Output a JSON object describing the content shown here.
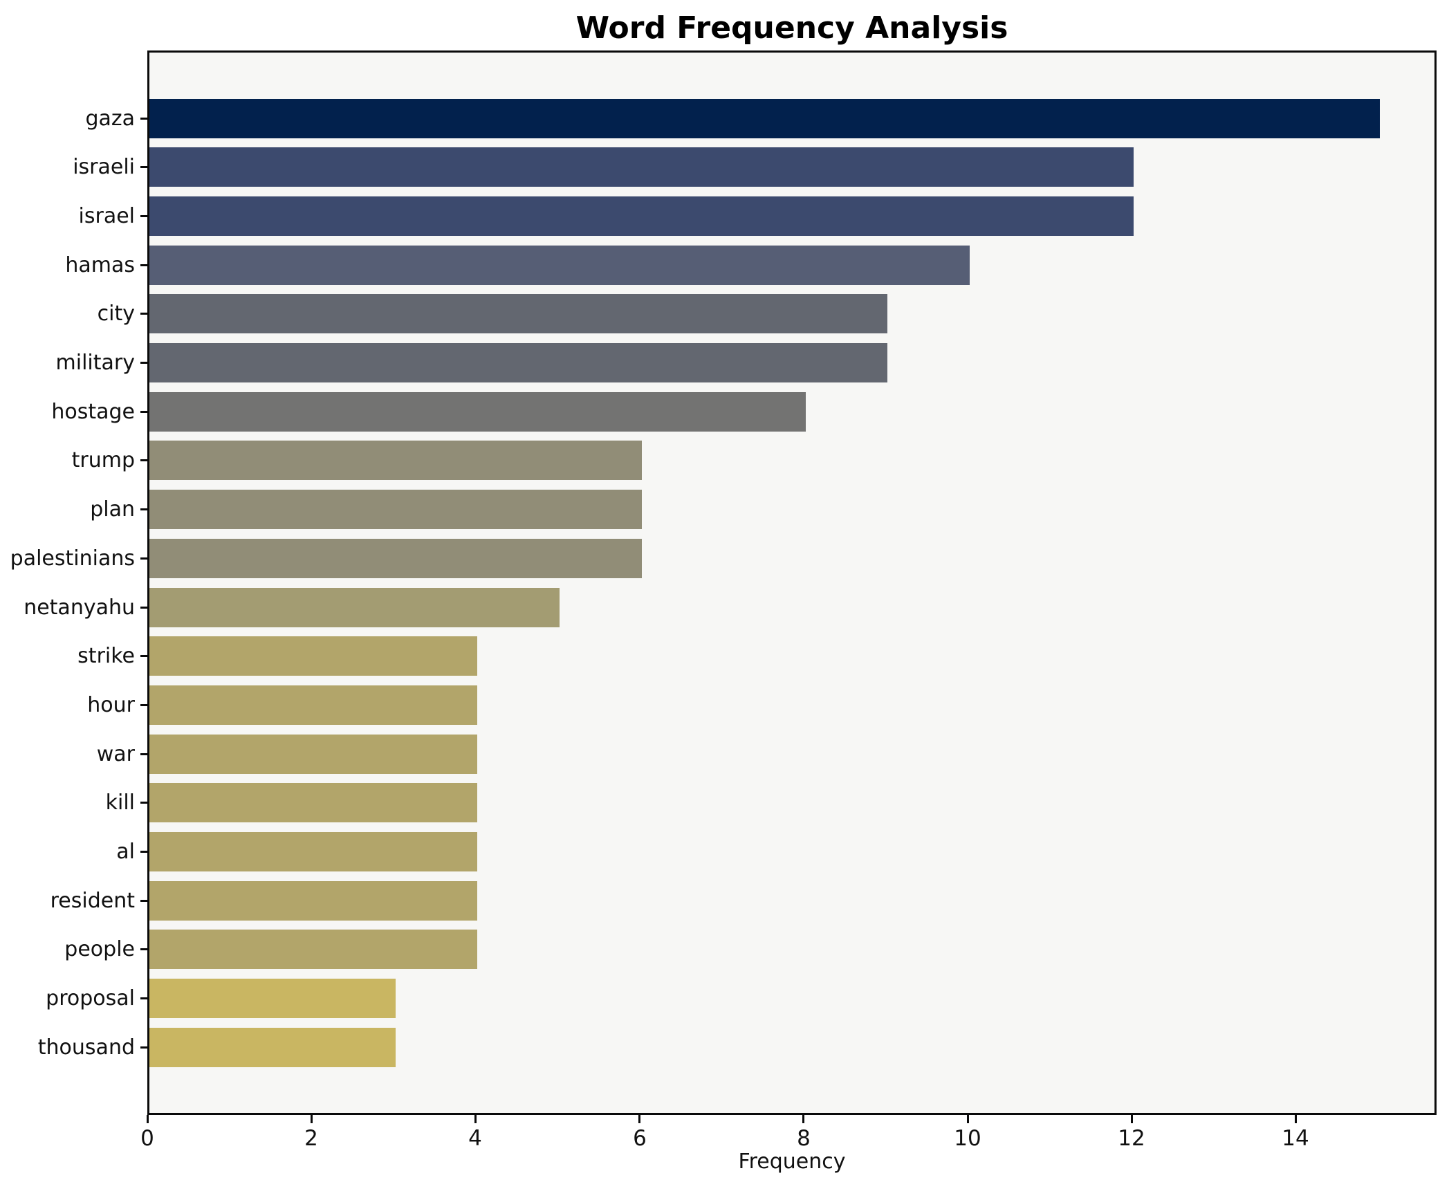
{
  "title": "Word Frequency Analysis",
  "chart_data": {
    "type": "bar",
    "orientation": "horizontal",
    "title": "Word Frequency Analysis",
    "xlabel": "Frequency",
    "ylabel": "",
    "categories": [
      "gaza",
      "israeli",
      "israel",
      "hamas",
      "city",
      "military",
      "hostage",
      "trump",
      "plan",
      "palestinians",
      "netanyahu",
      "strike",
      "hour",
      "war",
      "kill",
      "al",
      "resident",
      "people",
      "proposal",
      "thousand"
    ],
    "values": [
      15,
      12,
      12,
      10,
      9,
      9,
      8,
      6,
      6,
      6,
      5,
      4,
      4,
      4,
      4,
      4,
      4,
      4,
      3,
      3
    ],
    "bar_colors": [
      "#02214d",
      "#3c4a6e",
      "#3c4a6e",
      "#565e75",
      "#636770",
      "#636770",
      "#737372",
      "#918d77",
      "#918d77",
      "#918d77",
      "#a39c72",
      "#b2a56a",
      "#b2a56a",
      "#b2a56a",
      "#b2a56a",
      "#b2a56a",
      "#b2a56a",
      "#b2a56a",
      "#c9b662",
      "#c9b662"
    ],
    "x_ticks": [
      0,
      2,
      4,
      6,
      8,
      10,
      12,
      14
    ],
    "xlim": [
      0,
      15.7
    ],
    "grid": false,
    "legend": null,
    "colors": {
      "figure_bg": "#ffffff",
      "plot_bg": "#f7f7f5",
      "spine": "#0a0a0a",
      "text": "#111111"
    }
  }
}
